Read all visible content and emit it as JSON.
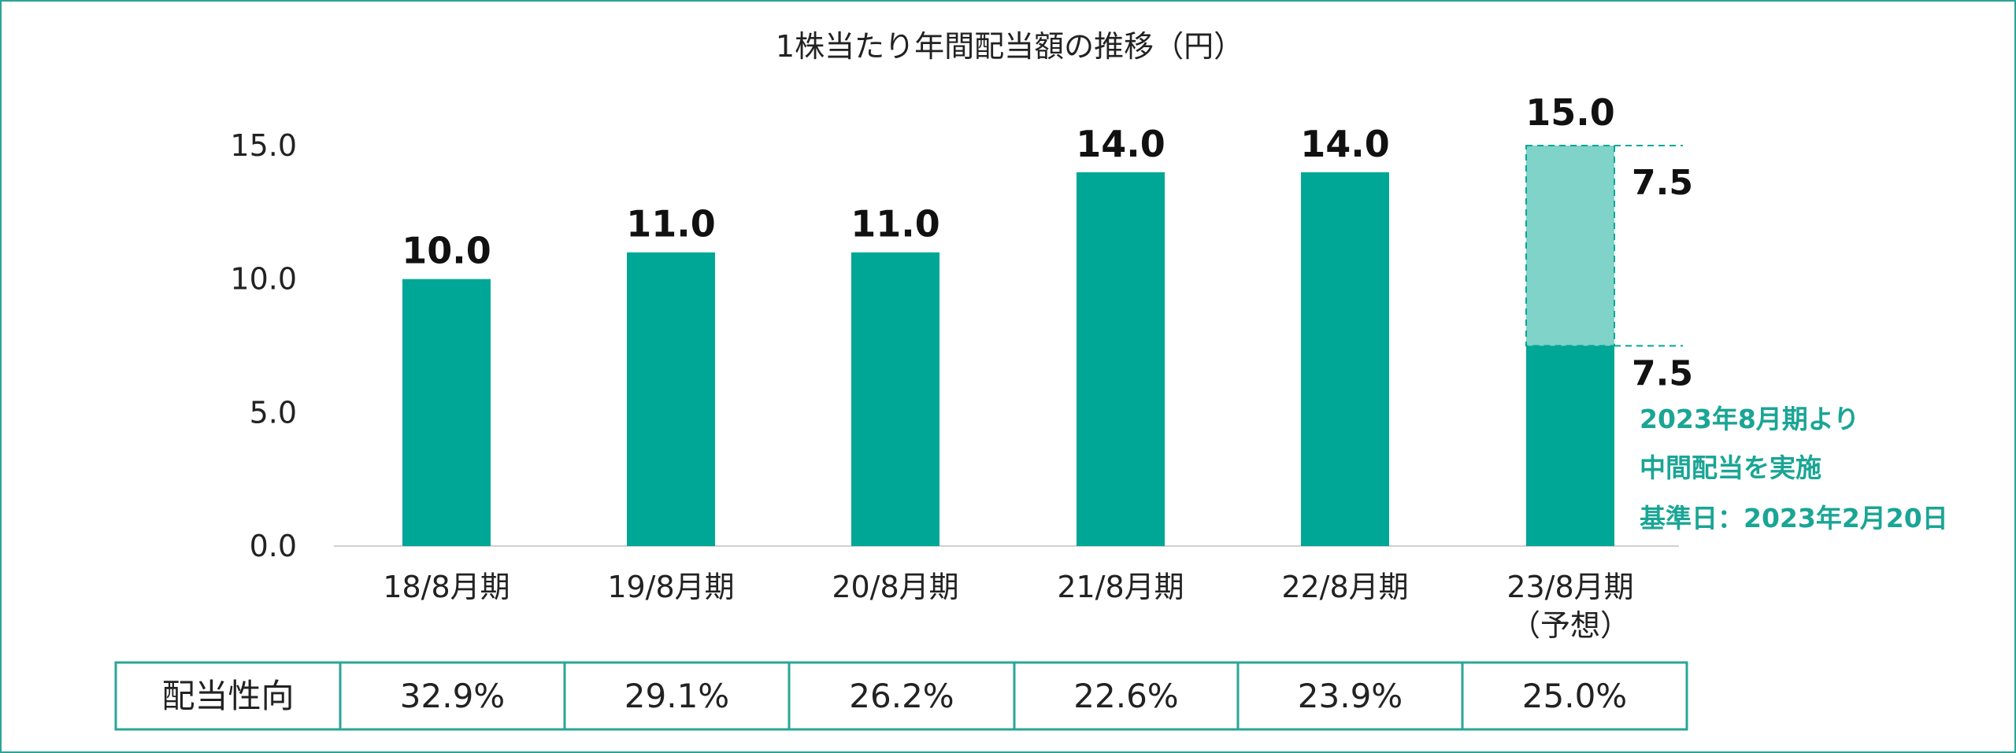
{
  "colors": {
    "bar": "#00a696",
    "bar_light": "#7fd3c8",
    "frame": "#2aa597",
    "note": "#1aa595"
  },
  "chart_data": {
    "type": "bar",
    "title": "1株当たり年間配当額の推移（円）",
    "ylim": [
      0,
      15
    ],
    "yticks": [
      0,
      5,
      10,
      15
    ],
    "ytick_labels": [
      "0.0",
      "5.0",
      "10.0",
      "15.0"
    ],
    "categories": [
      "18/8月期",
      "19/8月期",
      "20/8月期",
      "21/8月期",
      "22/8月期",
      "23/8月期"
    ],
    "category_sublabels": [
      "",
      "",
      "",
      "",
      "",
      "（予想）"
    ],
    "values": [
      10.0,
      11.0,
      11.0,
      14.0,
      14.0,
      15.0
    ],
    "value_labels": [
      "10.0",
      "11.0",
      "11.0",
      "14.0",
      "14.0",
      "15.0"
    ],
    "forecast_split": {
      "category": "23/8月期",
      "lower": 7.5,
      "upper": 7.5,
      "lower_label": "7.5",
      "upper_label": "7.5"
    },
    "annotation": [
      "2023年8月期より",
      "中間配当を実施",
      "基準日：2023年2月20日"
    ],
    "payout_table": {
      "row_label": "配当性向",
      "values": [
        "32.9%",
        "29.1%",
        "26.2%",
        "22.6%",
        "23.9%",
        "25.0%"
      ]
    }
  }
}
